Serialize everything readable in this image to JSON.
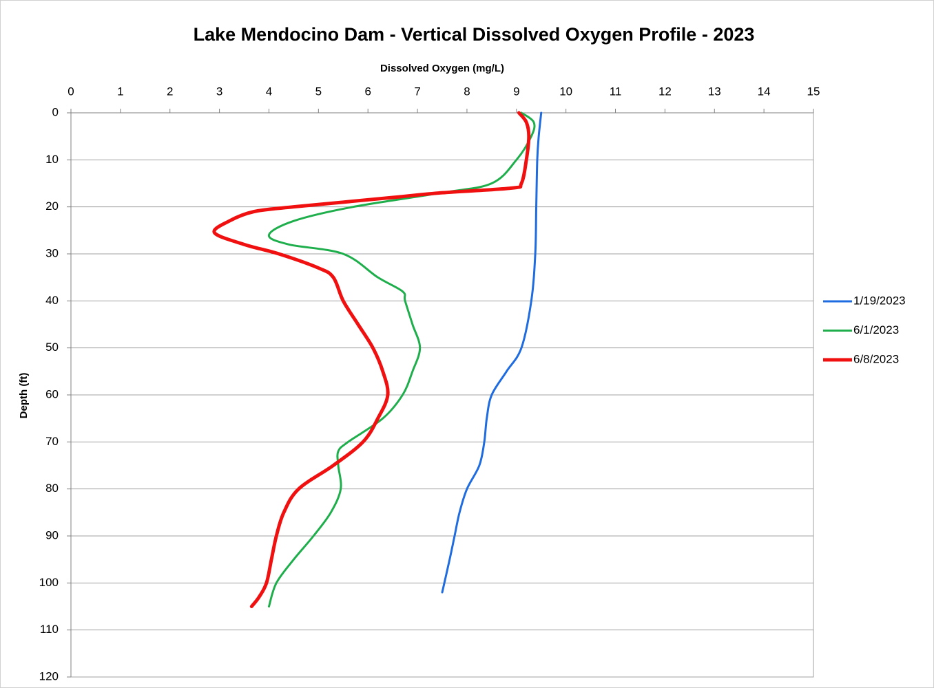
{
  "chart_data": {
    "type": "line",
    "title": "Lake Mendocino Dam - Vertical Dissolved Oxygen Profile - 2023",
    "x_label": "Dissolved Oxygen (mg/L)",
    "y_label": "Depth (ft)",
    "xlim": [
      0,
      15
    ],
    "xticks": [
      0,
      1,
      2,
      3,
      4,
      5,
      6,
      7,
      8,
      9,
      10,
      11,
      12,
      13,
      14,
      15
    ],
    "ylim": [
      0,
      120
    ],
    "yticks": [
      0,
      10,
      20,
      30,
      40,
      50,
      60,
      70,
      80,
      90,
      100,
      110,
      120
    ],
    "y_inverted": true,
    "grid": true,
    "legend": "right",
    "series": [
      {
        "name": "1/19/2023",
        "color": "#1f6be0",
        "width": 3,
        "y": [
          0,
          5,
          10,
          20,
          30,
          40,
          50,
          55,
          60,
          65,
          70,
          75,
          80,
          85,
          90,
          95,
          102
        ],
        "x": [
          9.5,
          9.45,
          9.42,
          9.4,
          9.38,
          9.3,
          9.1,
          8.8,
          8.5,
          8.4,
          8.35,
          8.25,
          8.0,
          7.85,
          7.75,
          7.65,
          7.5
        ]
      },
      {
        "name": "6/1/2023",
        "color": "#1fae4c",
        "width": 3,
        "y": [
          0,
          2,
          5,
          10,
          15,
          17,
          20,
          23,
          26,
          28,
          30,
          35,
          38,
          40,
          45,
          50,
          55,
          60,
          65,
          70,
          72,
          75,
          80,
          85,
          90,
          95,
          100,
          105
        ],
        "x": [
          9.1,
          9.35,
          9.3,
          9.0,
          8.5,
          7.5,
          5.7,
          4.5,
          4.0,
          4.4,
          5.5,
          6.2,
          6.7,
          6.75,
          6.9,
          7.05,
          6.9,
          6.7,
          6.3,
          5.6,
          5.4,
          5.4,
          5.45,
          5.25,
          4.9,
          4.5,
          4.15,
          4.0
        ]
      },
      {
        "name": "6/8/2023",
        "color": "#f01010",
        "width": 5,
        "y": [
          0,
          2,
          5,
          10,
          15,
          16,
          17,
          18,
          19,
          20,
          21,
          23,
          25.5,
          28,
          30,
          33,
          35,
          40,
          45,
          50,
          55,
          60,
          65,
          70,
          75,
          80,
          85,
          90,
          95,
          100,
          103,
          105
        ],
        "x": [
          9.05,
          9.2,
          9.25,
          9.2,
          9.1,
          8.9,
          7.5,
          6.5,
          5.5,
          4.5,
          3.7,
          3.2,
          2.9,
          3.5,
          4.2,
          5.0,
          5.3,
          5.5,
          5.8,
          6.1,
          6.3,
          6.4,
          6.2,
          5.9,
          5.3,
          4.6,
          4.3,
          4.15,
          4.05,
          3.95,
          3.8,
          3.65
        ]
      }
    ]
  }
}
